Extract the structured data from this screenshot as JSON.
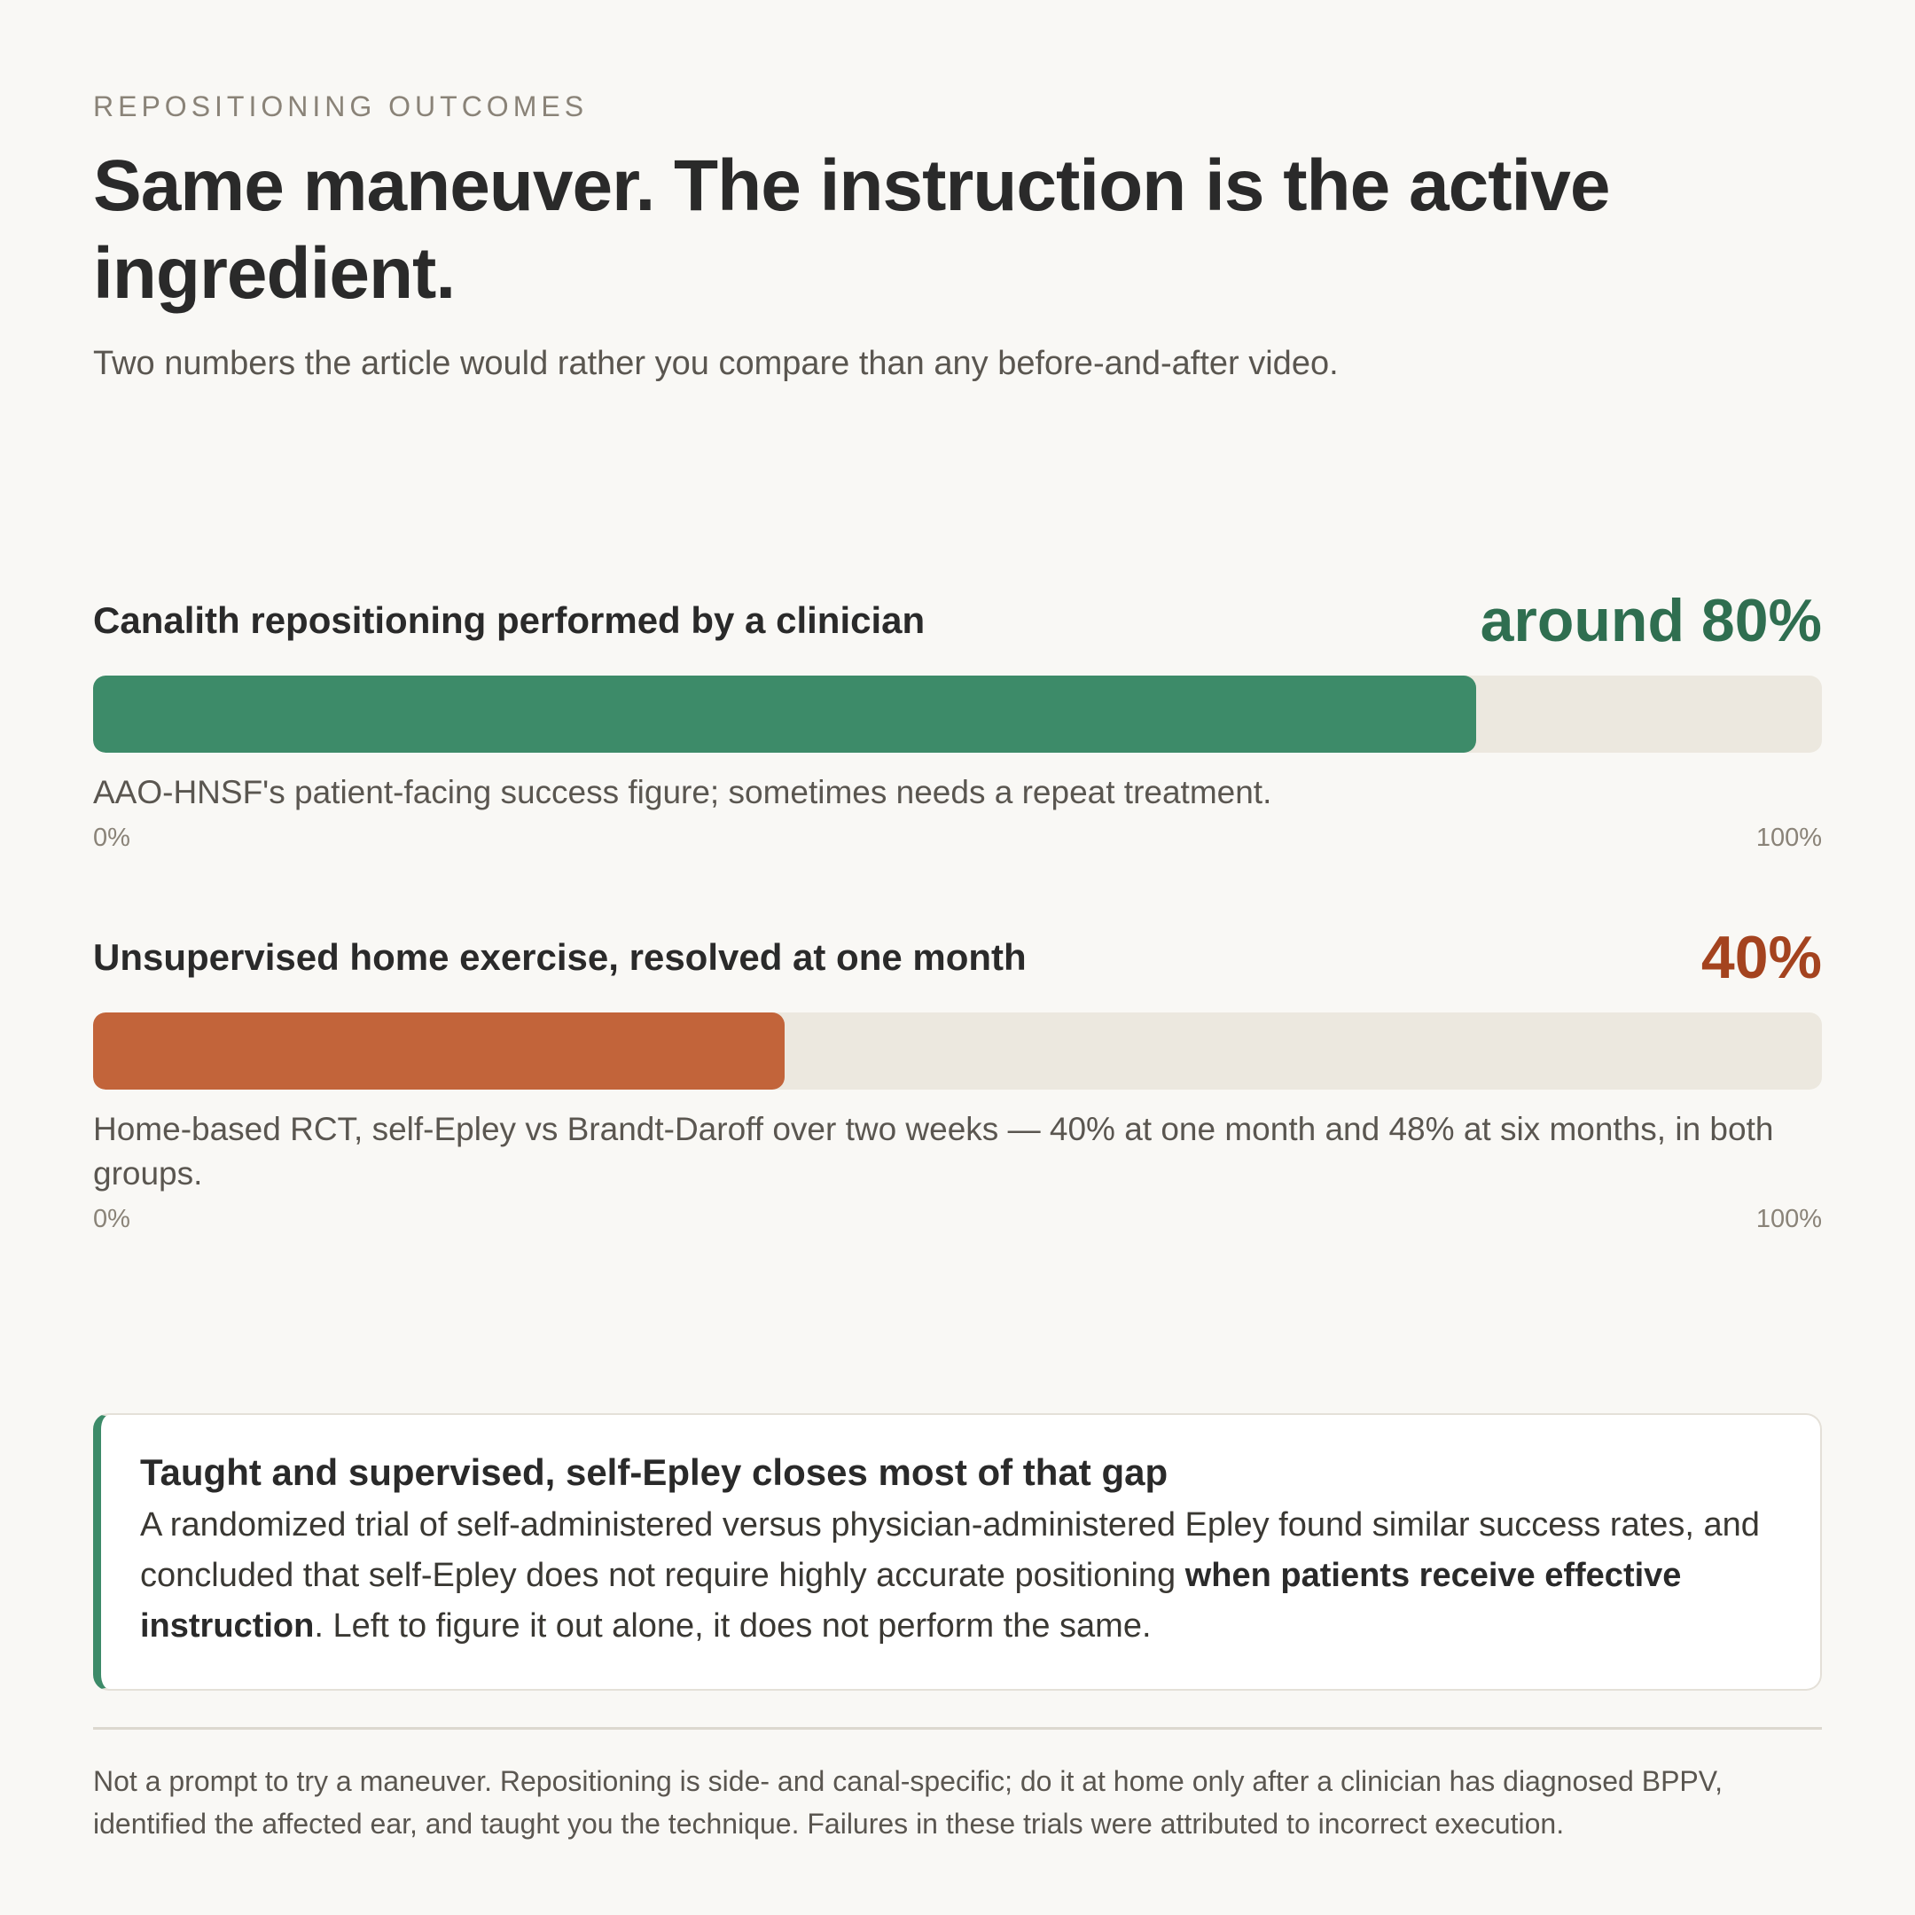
{
  "eyebrow": "REPOSITIONING OUTCOMES",
  "title": "Same maneuver. The instruction is the active ingredient.",
  "subtitle": "Two numbers the article would rather you compare than any before-and-after video.",
  "chart_data": {
    "type": "bar",
    "orientation": "horizontal",
    "categories": [
      "Canalith repositioning performed by a clinician",
      "Unsupervised home exercise, resolved at one month"
    ],
    "values": [
      80,
      40
    ],
    "value_labels": [
      "around 80%",
      "40%"
    ],
    "notes": [
      "AAO-HNSF's patient-facing success figure; sometimes needs a repeat treatment.",
      "Home-based RCT, self-Epley vs Brandt-Daroff over two weeks — 40% at one month and 48% at six months, in both groups."
    ],
    "colors": [
      "#3d8b69",
      "#c2643a"
    ],
    "label_colors": [
      "#2f6e50",
      "#a4431f"
    ],
    "xlim": [
      0,
      100
    ],
    "xticks": [
      {
        "value": 0,
        "label": "0%"
      },
      {
        "value": 100,
        "label": "100%"
      }
    ]
  },
  "callout": {
    "title": "Taught and supervised, self-Epley closes most of that gap",
    "body": [
      "A randomized trial of self-administered versus physician-administered Epley found similar success rates, and concluded that self-Epley does not require highly accurate positioning ",
      "when patients receive effective instruction",
      ". Left to figure it out alone, it does not perform the same."
    ]
  },
  "footnote": "Not a prompt to try a maneuver. Repositioning is side- and canal-specific; do it at home only after a clinician has diagnosed BPPV, identified the affected ear, and taught you the technique. Failures in these trials were attributed to incorrect execution."
}
